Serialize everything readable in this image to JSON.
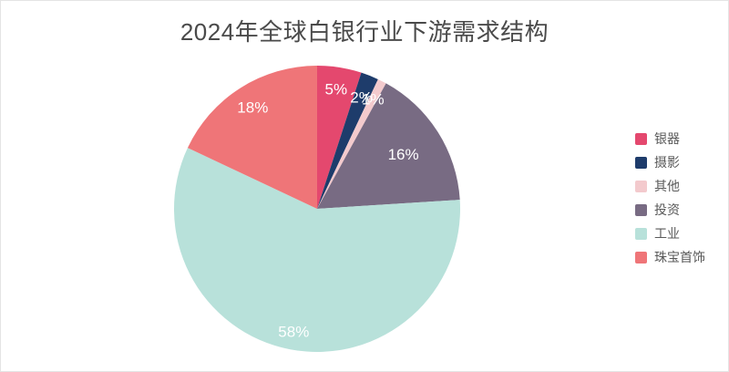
{
  "window": {
    "background": "#ffffff",
    "border_color": "#e4e4e4"
  },
  "chart_data": {
    "type": "pie",
    "title": "2024年全球白银行业下游需求结构",
    "unit": "%",
    "legend_position": "right",
    "title_color": "#4a4a4a",
    "legend_text_color": "#595959",
    "label_text_color": "#ffffff",
    "slices": [
      {
        "label": "银器",
        "value": 5,
        "display": "5%",
        "color": "#e4486e"
      },
      {
        "label": "摄影",
        "value": 2,
        "display": "2%",
        "color": "#1e3c6b"
      },
      {
        "label": "其他",
        "value": 1,
        "display": "1%",
        "color": "#f3cacd"
      },
      {
        "label": "投资",
        "value": 16,
        "display": "16%",
        "color": "#786b83"
      },
      {
        "label": "工业",
        "value": 58,
        "display": "58%",
        "color": "#b8e1da"
      },
      {
        "label": "珠宝首饰",
        "value": 18,
        "display": "18%",
        "color": "#ef7578"
      }
    ]
  }
}
